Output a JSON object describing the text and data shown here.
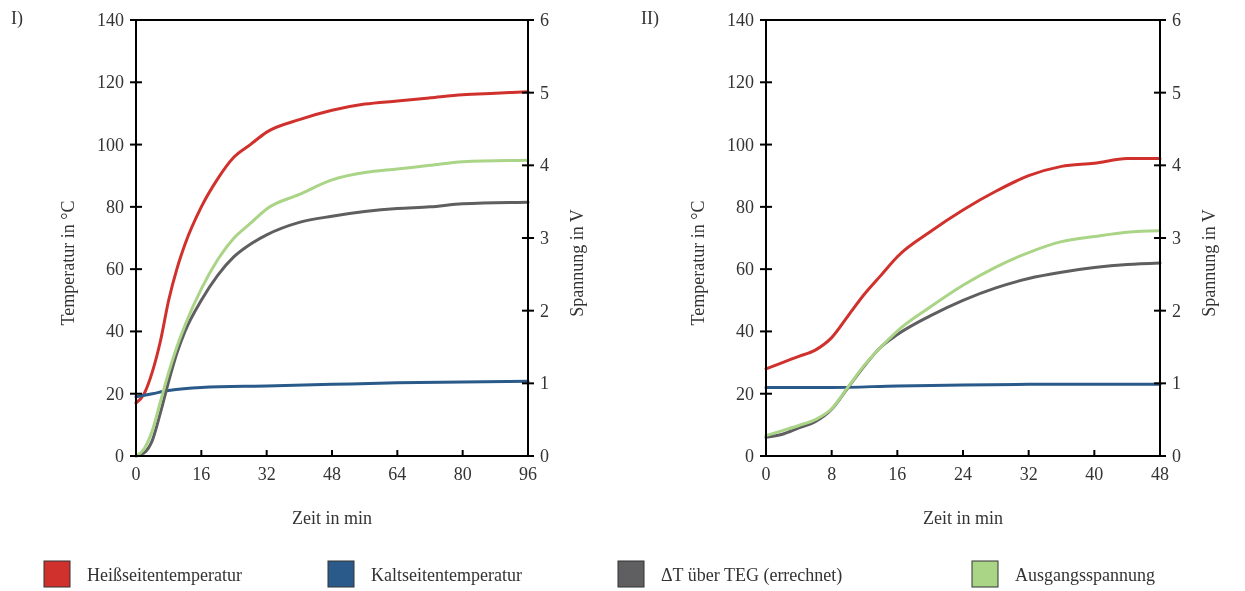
{
  "chart_data": [
    {
      "type": "line",
      "title": "I)",
      "xlabel": "Zeit in min",
      "ylabel": "Temperatur in °C",
      "y2label": "Spannung in V",
      "xlim": [
        0,
        96
      ],
      "xticks": [
        0,
        16,
        32,
        48,
        64,
        80,
        96
      ],
      "ylim": [
        0,
        140
      ],
      "yticks": [
        0,
        20,
        40,
        60,
        80,
        100,
        120,
        140
      ],
      "y2lim": [
        0,
        6
      ],
      "y2ticks": [
        0,
        1,
        2,
        3,
        4,
        5,
        6
      ],
      "legend": "bottom",
      "grid": false,
      "series": [
        {
          "name": "Heißseitentemperatur",
          "color": "#d0312d",
          "x": [
            0,
            2,
            4,
            6,
            8,
            10,
            12,
            16,
            20,
            24,
            28,
            32,
            40,
            48,
            56,
            64,
            72,
            80,
            88,
            96
          ],
          "values": [
            17,
            20,
            27,
            37,
            50,
            60,
            68,
            80,
            89,
            96,
            100,
            104,
            108,
            111,
            113,
            114,
            115,
            116,
            116.5,
            117
          ]
        },
        {
          "name": "Kaltseitentemperatur",
          "color": "#2a5a8a",
          "x": [
            0,
            4,
            8,
            16,
            32,
            48,
            64,
            96
          ],
          "values": [
            19,
            20,
            21,
            22,
            22.5,
            23,
            23.5,
            24
          ]
        },
        {
          "name": "ΔT über TEG (errechnet)",
          "color": "#5f5f61",
          "x": [
            0,
            2,
            4,
            6,
            8,
            10,
            12,
            16,
            20,
            24,
            28,
            32,
            40,
            48,
            56,
            64,
            72,
            80,
            96
          ],
          "values": [
            0,
            1,
            5,
            14,
            24,
            33,
            40,
            50,
            58,
            64,
            68,
            71,
            75,
            77,
            78.5,
            79.5,
            80,
            81,
            81.5
          ]
        },
        {
          "name": "Ausgangsspannung",
          "color": "#aad486",
          "axis": "y2",
          "x": [
            0,
            2,
            4,
            6,
            8,
            10,
            12,
            16,
            20,
            24,
            28,
            32,
            40,
            48,
            56,
            64,
            72,
            80,
            96
          ],
          "values": [
            0,
            0.1,
            0.35,
            0.75,
            1.15,
            1.5,
            1.8,
            2.3,
            2.7,
            3.0,
            3.2,
            3.4,
            3.6,
            3.8,
            3.9,
            3.95,
            4.0,
            4.05,
            4.07
          ]
        }
      ]
    },
    {
      "type": "line",
      "title": "II)",
      "xlabel": "Zeit in min",
      "ylabel": "Temperatur in °C",
      "y2label": "Spannung in V",
      "xlim": [
        0,
        48
      ],
      "xticks": [
        0,
        8,
        16,
        24,
        32,
        40,
        48
      ],
      "ylim": [
        0,
        140
      ],
      "yticks": [
        0,
        20,
        40,
        60,
        80,
        100,
        120,
        140
      ],
      "y2lim": [
        0,
        6
      ],
      "y2ticks": [
        0,
        1,
        2,
        3,
        4,
        5,
        6
      ],
      "grid": false,
      "series": [
        {
          "color": "#d0312d",
          "x": [
            0,
            2,
            4,
            6,
            8,
            10,
            12,
            14,
            16,
            20,
            24,
            28,
            32,
            36,
            40,
            44,
            48
          ],
          "values": [
            28,
            30,
            32,
            34,
            38,
            45,
            52,
            58,
            64,
            72,
            79,
            85,
            90,
            93,
            94,
            95.5,
            95.5
          ]
        },
        {
          "color": "#2a5a8a",
          "x": [
            0,
            8,
            16,
            32,
            48
          ],
          "values": [
            22,
            22,
            22.5,
            23,
            23
          ]
        },
        {
          "color": "#5f5f61",
          "x": [
            0,
            2,
            4,
            6,
            8,
            10,
            12,
            14,
            16,
            20,
            24,
            28,
            32,
            36,
            40,
            44,
            48
          ],
          "values": [
            6,
            7,
            9,
            11,
            15,
            22,
            29,
            35,
            39,
            45,
            50,
            54,
            57,
            59,
            60.5,
            61.5,
            62
          ]
        },
        {
          "color": "#aad486",
          "axis": "y2",
          "x": [
            0,
            2,
            4,
            6,
            8,
            10,
            12,
            14,
            16,
            20,
            24,
            28,
            32,
            36,
            40,
            44,
            48
          ],
          "values": [
            0.28,
            0.35,
            0.42,
            0.5,
            0.65,
            0.95,
            1.25,
            1.5,
            1.72,
            2.05,
            2.35,
            2.6,
            2.8,
            2.95,
            3.02,
            3.08,
            3.1
          ]
        }
      ]
    }
  ]
}
